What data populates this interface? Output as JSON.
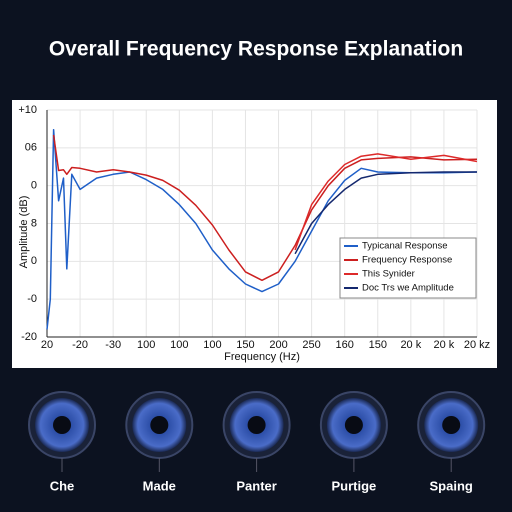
{
  "chart_data": {
    "type": "line",
    "title": "Overall Frequency Response Explanation",
    "xlabel": "Frequency (Hz)",
    "ylabel": "Amplitude (dB)",
    "x": [
      0,
      0.1,
      0.2,
      0.35,
      0.5,
      0.6,
      0.75,
      1,
      1.5,
      2,
      2.5,
      3,
      3.5,
      4,
      4.5,
      5,
      5.5,
      6,
      6.5,
      7,
      7.5,
      8,
      8.5,
      9,
      9.5,
      10,
      11,
      12,
      13
    ],
    "xlim": [
      0,
      13
    ],
    "xticks": [
      {
        "value": 0,
        "label": "20"
      },
      {
        "value": 1,
        "label": "-20"
      },
      {
        "value": 2,
        "label": "-30"
      },
      {
        "value": 3,
        "label": "100"
      },
      {
        "value": 4,
        "label": "100"
      },
      {
        "value": 5,
        "label": "100"
      },
      {
        "value": 6,
        "label": "150"
      },
      {
        "value": 7,
        "label": "200"
      },
      {
        "value": 8,
        "label": "250"
      },
      {
        "value": 9,
        "label": "160"
      },
      {
        "value": 10,
        "label": "150"
      },
      {
        "value": 11,
        "label": "20 k"
      },
      {
        "value": 12,
        "label": "20 k"
      },
      {
        "value": 13,
        "label": "20 kz"
      }
    ],
    "ylim": [
      -20,
      10
    ],
    "yticks": [
      {
        "value": 10,
        "label": "+10"
      },
      {
        "value": 5,
        "label": "06"
      },
      0,
      {
        "value": -5,
        "label": "8"
      },
      {
        "value": -10,
        "label": "0"
      },
      {
        "value": -15,
        "label": "-0"
      },
      -20
    ],
    "grid": true,
    "series": [
      {
        "name": "Typicanal Response",
        "color": "#1f5fc8",
        "values": [
          -19,
          -15,
          7.4,
          -2,
          1,
          -11,
          1.5,
          -0.5,
          1,
          1.5,
          1.8,
          0.8,
          -0.5,
          -2.5,
          -5,
          -8.5,
          -11,
          -13,
          -14,
          -13,
          -10,
          -6,
          -2,
          0.7,
          2.3,
          1.8,
          1.7,
          1.7,
          1.8
        ]
      },
      {
        "name": "Frequency Response",
        "color": "#cc1f1f",
        "values": [
          null,
          null,
          6.7,
          2,
          2.1,
          1.5,
          2.4,
          2.3,
          1.8,
          2.1,
          1.8,
          1.4,
          0.7,
          -0.6,
          -2.6,
          -5.2,
          -8.5,
          -11.4,
          -12.5,
          -11.4,
          -7.9,
          -3.2,
          0,
          2.3,
          3.4,
          3.6,
          3.8,
          3.4,
          3.5
        ]
      },
      {
        "name": "This Synider",
        "color": "#dd2a2a",
        "values": [
          null,
          null,
          null,
          null,
          null,
          null,
          null,
          null,
          null,
          null,
          null,
          null,
          null,
          null,
          null,
          null,
          null,
          null,
          null,
          null,
          -8.5,
          -2.5,
          0.6,
          2.8,
          3.9,
          4.2,
          3.5,
          4.0,
          3.2
        ]
      },
      {
        "name": "Doc Trs we Amplitude",
        "color": "#14286e",
        "values": [
          null,
          null,
          null,
          null,
          null,
          null,
          null,
          null,
          null,
          null,
          null,
          null,
          null,
          null,
          null,
          null,
          null,
          null,
          null,
          null,
          -9,
          -5,
          -2.5,
          -0.5,
          1,
          1.5,
          1.7,
          1.8,
          1.8
        ]
      }
    ]
  },
  "speakers": [
    "Che",
    "Made",
    "Panter",
    "Purtige",
    "Spaing"
  ]
}
